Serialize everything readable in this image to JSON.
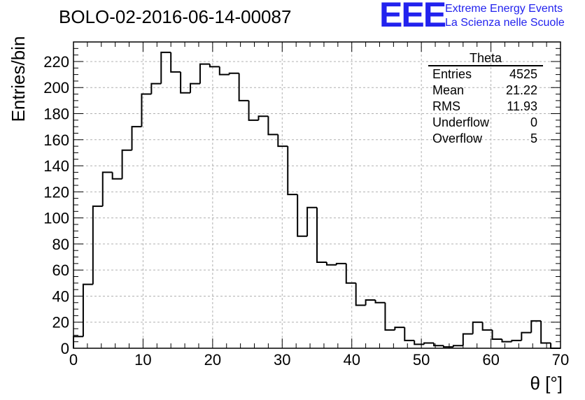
{
  "title": "BOLO-02-2016-06-14-00087",
  "logo": {
    "letters": "EEE",
    "line1": "Extreme Energy Events",
    "line2": "La Scienza nelle Scuole",
    "color": "#2222ee"
  },
  "stats": {
    "name": "Theta",
    "rows": [
      {
        "label": "Entries",
        "value": "4525"
      },
      {
        "label": "Mean",
        "value": "21.22"
      },
      {
        "label": "RMS",
        "value": "11.93"
      },
      {
        "label": "Underflow",
        "value": "0"
      },
      {
        "label": "Overflow",
        "value": "5"
      }
    ]
  },
  "chart_data": {
    "type": "bar",
    "style": "step histogram",
    "xlabel": "θ [°]",
    "ylabel": "Entries/bin",
    "xlim": [
      0,
      70
    ],
    "ylim": [
      0,
      235
    ],
    "grid": true,
    "bin_width": 1.4,
    "bin_edges_start": 0,
    "values": [
      9,
      49,
      109,
      135,
      130,
      152,
      170,
      195,
      203,
      227,
      212,
      196,
      203,
      218,
      216,
      210,
      211,
      190,
      175,
      178,
      164,
      155,
      118,
      86,
      108,
      66,
      64,
      65,
      50,
      33,
      37,
      35,
      14,
      16,
      6,
      3,
      4,
      2,
      1,
      2,
      11,
      20,
      14,
      7,
      5,
      6,
      12,
      21,
      4,
      0
    ],
    "x_ticks": [
      0,
      10,
      20,
      30,
      40,
      50,
      60,
      70
    ],
    "y_ticks": [
      0,
      20,
      40,
      60,
      80,
      100,
      120,
      140,
      160,
      180,
      200,
      220
    ],
    "legend": "stats box top-right"
  }
}
